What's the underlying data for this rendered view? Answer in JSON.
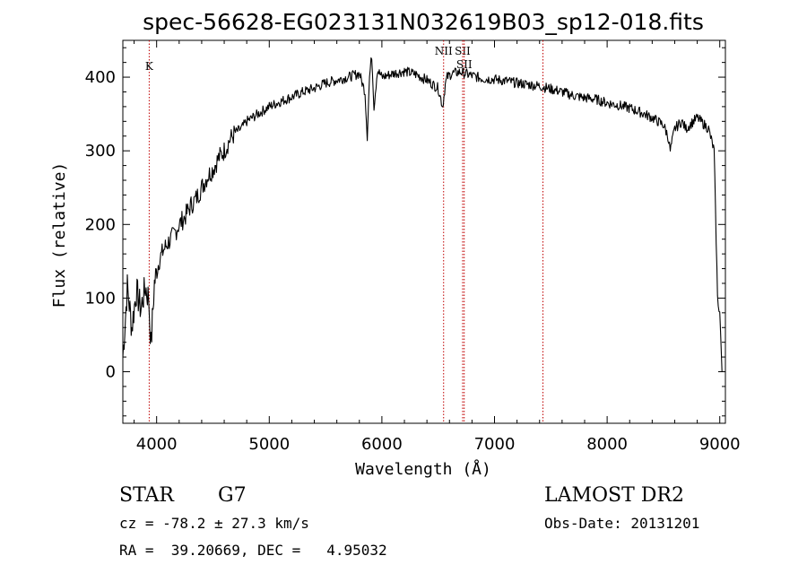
{
  "chart_data": {
    "type": "line",
    "title": "spec-56628-EG023131N032619B03_sp12-018.fits",
    "xlabel": "Wavelength (Å)",
    "ylabel": "Flux (relative)",
    "xlim": [
      3700,
      9050
    ],
    "ylim": [
      -70,
      450
    ],
    "x_ticks": [
      4000,
      5000,
      6000,
      7000,
      8000,
      9000
    ],
    "y_ticks": [
      0,
      100,
      200,
      300,
      400
    ],
    "spectral_lines": [
      {
        "label": "K",
        "wavelength": 3934
      },
      {
        "label": "NII",
        "wavelength": 6548
      },
      {
        "label": "SII",
        "wavelength": 6717
      },
      {
        "label": "SII",
        "wavelength": 6731
      },
      {
        "label": "",
        "wavelength": 7430
      }
    ],
    "series": [
      {
        "x": [
          3700,
          3740,
          3780,
          3820,
          3860,
          3900,
          3930,
          3950,
          3980,
          4020,
          4060,
          4100,
          4150,
          4200,
          4250,
          4300,
          4350,
          4400,
          4450,
          4500,
          4550,
          4600,
          4650,
          4700,
          4750,
          4800,
          4850,
          4900,
          4950,
          5000,
          5100,
          5200,
          5300,
          5400,
          5500,
          5600,
          5700,
          5800,
          5850,
          5870,
          5890,
          5910,
          5930,
          5960,
          6000,
          6100,
          6200,
          6300,
          6400,
          6500,
          6540,
          6563,
          6580,
          6620,
          6700,
          6800,
          6900,
          7000,
          7100,
          7200,
          7300,
          7400,
          7500,
          7600,
          7700,
          7800,
          7900,
          8000,
          8100,
          8200,
          8300,
          8400,
          8500,
          8540,
          8560,
          8600,
          8662,
          8700,
          8800,
          8900,
          8950,
          8980,
          9000,
          9020
        ],
        "y": [
          20,
          115,
          60,
          110,
          85,
          115,
          100,
          35,
          120,
          150,
          165,
          175,
          185,
          200,
          210,
          225,
          235,
          250,
          265,
          275,
          290,
          300,
          315,
          325,
          330,
          340,
          345,
          350,
          355,
          360,
          367,
          373,
          380,
          385,
          392,
          396,
          400,
          405,
          380,
          320,
          400,
          430,
          360,
          410,
          400,
          405,
          408,
          404,
          396,
          385,
          360,
          390,
          400,
          405,
          407,
          402,
          398,
          397,
          395,
          392,
          390,
          388,
          384,
          380,
          375,
          372,
          370,
          365,
          362,
          358,
          352,
          345,
          335,
          320,
          300,
          330,
          340,
          330,
          345,
          330,
          300,
          100,
          80,
          0
        ]
      }
    ]
  },
  "info": {
    "class": "STAR",
    "subclass": "G7",
    "survey": "LAMOST DR2",
    "cz": "cz = -78.2 ± 27.3 km/s",
    "obs_date": "Obs-Date: 20131201",
    "radec": "RA =  39.20669, DEC =   4.95032"
  }
}
